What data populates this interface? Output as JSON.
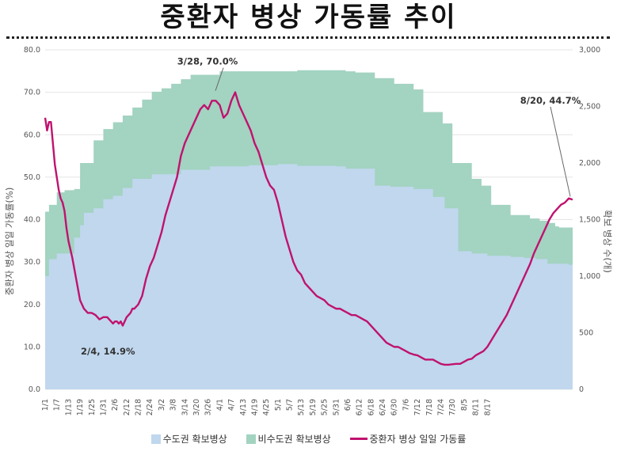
{
  "title": "중환자 병상 가동률 추이",
  "chart_data": {
    "type": "area+line",
    "ylabel": "중환자 병상 일일 가동률(%)",
    "y2label": "확보 병상 수(개)",
    "ylim": [
      0,
      80
    ],
    "y_ticks": [
      "0.0",
      "10.0",
      "20.0",
      "30.0",
      "40.0",
      "50.0",
      "60.0",
      "70.0",
      "80.0"
    ],
    "y2lim": [
      0,
      3000
    ],
    "y2_ticks": [
      "0",
      "500",
      "1,000",
      "1,500",
      "2,000",
      "2,500",
      "3,000"
    ],
    "x_tick_labels": [
      "1/1",
      "1/7",
      "1/13",
      "1/19",
      "1/25",
      "1/31",
      "2/6",
      "2/12",
      "2/18",
      "2/24",
      "3/2",
      "3/8",
      "3/14",
      "3/20",
      "3/26",
      "4/1",
      "4/7",
      "4/13",
      "4/19",
      "4/25",
      "5/1",
      "5/7",
      "5/13",
      "5/19",
      "5/25",
      "5/31",
      "6/6",
      "6/12",
      "6/18",
      "6/24",
      "6/30",
      "7/6",
      "7/12",
      "7/18",
      "7/24",
      "7/30",
      "8/5",
      "8/11",
      "8/17"
    ],
    "series": [
      {
        "name": "수도권 확보병상",
        "kind": "area",
        "axis": "right",
        "color": "#c0d7ee",
        "points": [
          [
            0,
            1000
          ],
          [
            2,
            1150
          ],
          [
            6,
            1200
          ],
          [
            12,
            1200
          ],
          [
            15,
            1340
          ],
          [
            18,
            1450
          ],
          [
            20,
            1560
          ],
          [
            25,
            1600
          ],
          [
            30,
            1680
          ],
          [
            35,
            1710
          ],
          [
            40,
            1780
          ],
          [
            45,
            1860
          ],
          [
            55,
            1900
          ],
          [
            70,
            1940
          ],
          [
            85,
            1970
          ],
          [
            105,
            1980
          ],
          [
            120,
            1990
          ],
          [
            130,
            1975
          ],
          [
            150,
            1970
          ],
          [
            155,
            1950
          ],
          [
            165,
            1950
          ],
          [
            170,
            1800
          ],
          [
            178,
            1790
          ],
          [
            190,
            1770
          ],
          [
            200,
            1700
          ],
          [
            206,
            1600
          ],
          [
            213,
            1220
          ],
          [
            220,
            1200
          ],
          [
            228,
            1180
          ],
          [
            240,
            1170
          ],
          [
            247,
            1160
          ],
          [
            253,
            1150
          ],
          [
            259,
            1110
          ],
          [
            270,
            1100
          ],
          [
            276,
            1120
          ],
          [
            282,
            1150
          ],
          [
            285,
            1200
          ],
          [
            290,
            1200
          ],
          [
            295,
            1210
          ],
          [
            300,
            1220
          ],
          [
            305,
            1230
          ]
        ]
      },
      {
        "name": "비수도권 확보병상",
        "kind": "area",
        "axis": "right",
        "color": "#a3d3c1",
        "points": [
          [
            0,
            1570
          ],
          [
            2,
            1630
          ],
          [
            6,
            1740
          ],
          [
            10,
            1760
          ],
          [
            15,
            1770
          ],
          [
            18,
            2000
          ],
          [
            25,
            2200
          ],
          [
            30,
            2300
          ],
          [
            35,
            2360
          ],
          [
            40,
            2420
          ],
          [
            45,
            2490
          ],
          [
            50,
            2560
          ],
          [
            55,
            2630
          ],
          [
            60,
            2660
          ],
          [
            65,
            2700
          ],
          [
            70,
            2740
          ],
          [
            75,
            2780
          ],
          [
            90,
            2810
          ],
          [
            130,
            2820
          ],
          [
            155,
            2810
          ],
          [
            160,
            2800
          ],
          [
            170,
            2750
          ],
          [
            180,
            2700
          ],
          [
            190,
            2650
          ],
          [
            195,
            2450
          ],
          [
            205,
            2350
          ],
          [
            210,
            2000
          ],
          [
            220,
            1860
          ],
          [
            225,
            1800
          ],
          [
            230,
            1630
          ],
          [
            240,
            1540
          ],
          [
            250,
            1510
          ],
          [
            255,
            1490
          ],
          [
            260,
            1470
          ],
          [
            263,
            1440
          ],
          [
            265,
            1430
          ],
          [
            270,
            1430
          ],
          [
            275,
            1520
          ],
          [
            278,
            1570
          ],
          [
            282,
            1590
          ],
          [
            286,
            1650
          ],
          [
            293,
            1760
          ],
          [
            297,
            1790
          ],
          [
            305,
            1800
          ]
        ]
      },
      {
        "name": "중환자 병상 일일 가동률",
        "kind": "line",
        "axis": "left",
        "color": "#c0126e",
        "points": [
          [
            0,
            64
          ],
          [
            1,
            61
          ],
          [
            2,
            63
          ],
          [
            3,
            63
          ],
          [
            4,
            58
          ],
          [
            5,
            53
          ],
          [
            6,
            50
          ],
          [
            7,
            47
          ],
          [
            8,
            45
          ],
          [
            9,
            44
          ],
          [
            10,
            42
          ],
          [
            11,
            38
          ],
          [
            12,
            35
          ],
          [
            14,
            31
          ],
          [
            16,
            26
          ],
          [
            18,
            21
          ],
          [
            20,
            19
          ],
          [
            22,
            18
          ],
          [
            24,
            18
          ],
          [
            26,
            17.5
          ],
          [
            28,
            16.5
          ],
          [
            30,
            17
          ],
          [
            32,
            17
          ],
          [
            33,
            16.5
          ],
          [
            34,
            16
          ],
          [
            35,
            15.5
          ],
          [
            36,
            16
          ],
          [
            37,
            16
          ],
          [
            38,
            15.5
          ],
          [
            39,
            16
          ],
          [
            40,
            15
          ],
          [
            41,
            16
          ],
          [
            42,
            17
          ],
          [
            43,
            17.5
          ],
          [
            44,
            18
          ],
          [
            45,
            19
          ],
          [
            46,
            19
          ],
          [
            48,
            20
          ],
          [
            50,
            22
          ],
          [
            52,
            26
          ],
          [
            54,
            29
          ],
          [
            56,
            31
          ],
          [
            58,
            34
          ],
          [
            60,
            37
          ],
          [
            62,
            41
          ],
          [
            64,
            44
          ],
          [
            66,
            47
          ],
          [
            68,
            50
          ],
          [
            70,
            55
          ],
          [
            72,
            58
          ],
          [
            74,
            60
          ],
          [
            76,
            62
          ],
          [
            78,
            64
          ],
          [
            80,
            66
          ],
          [
            82,
            67
          ],
          [
            84,
            66
          ],
          [
            86,
            68
          ],
          [
            88,
            68
          ],
          [
            90,
            67
          ],
          [
            92,
            64
          ],
          [
            94,
            65
          ],
          [
            96,
            68
          ],
          [
            98,
            70
          ],
          [
            100,
            67
          ],
          [
            102,
            65
          ],
          [
            104,
            63
          ],
          [
            106,
            61
          ],
          [
            108,
            58
          ],
          [
            110,
            56
          ],
          [
            112,
            53
          ],
          [
            114,
            50
          ],
          [
            116,
            48
          ],
          [
            118,
            47
          ],
          [
            120,
            44
          ],
          [
            122,
            40
          ],
          [
            124,
            36
          ],
          [
            126,
            33
          ],
          [
            128,
            30
          ],
          [
            130,
            28
          ],
          [
            132,
            27
          ],
          [
            134,
            25
          ],
          [
            136,
            24
          ],
          [
            138,
            23
          ],
          [
            140,
            22
          ],
          [
            142,
            21.5
          ],
          [
            144,
            21
          ],
          [
            146,
            20
          ],
          [
            148,
            19.5
          ],
          [
            150,
            19
          ],
          [
            152,
            19
          ],
          [
            154,
            18.5
          ],
          [
            156,
            18
          ],
          [
            158,
            17.5
          ],
          [
            160,
            17.5
          ],
          [
            162,
            17
          ],
          [
            164,
            16.5
          ],
          [
            166,
            16
          ],
          [
            168,
            15
          ],
          [
            170,
            14
          ],
          [
            172,
            13
          ],
          [
            174,
            12
          ],
          [
            176,
            11
          ],
          [
            178,
            10.5
          ],
          [
            180,
            10
          ],
          [
            182,
            10
          ],
          [
            184,
            9.5
          ],
          [
            186,
            9
          ],
          [
            188,
            8.5
          ],
          [
            190,
            8.2
          ],
          [
            192,
            8
          ],
          [
            194,
            7.5
          ],
          [
            196,
            7
          ],
          [
            198,
            7
          ],
          [
            200,
            7
          ],
          [
            202,
            6.5
          ],
          [
            204,
            6
          ],
          [
            206,
            5.8
          ],
          [
            208,
            5.8
          ],
          [
            210,
            5.9
          ],
          [
            212,
            6
          ],
          [
            214,
            6
          ],
          [
            216,
            6.5
          ],
          [
            218,
            7
          ],
          [
            220,
            7.2
          ],
          [
            222,
            8
          ],
          [
            224,
            8.5
          ],
          [
            226,
            9
          ],
          [
            228,
            10
          ],
          [
            230,
            11.5
          ],
          [
            232,
            13
          ],
          [
            234,
            14.5
          ],
          [
            236,
            16
          ],
          [
            238,
            17.5
          ],
          [
            240,
            19.5
          ],
          [
            242,
            21.5
          ],
          [
            244,
            23.5
          ],
          [
            246,
            25.5
          ],
          [
            248,
            27.5
          ],
          [
            250,
            29.5
          ],
          [
            252,
            32
          ],
          [
            254,
            34
          ],
          [
            256,
            36
          ],
          [
            258,
            38
          ],
          [
            260,
            40
          ],
          [
            262,
            41.5
          ],
          [
            264,
            42.5
          ],
          [
            266,
            43.5
          ],
          [
            268,
            44
          ],
          [
            270,
            45
          ],
          [
            272,
            44.7
          ]
        ]
      }
    ],
    "annotations": [
      {
        "label": "2/4, 14.9%",
        "x": 34,
        "y": 14.9
      },
      {
        "label": "3/28, 70.0%",
        "x": 87,
        "y": 70.0
      },
      {
        "label": "8/20, 44.7%",
        "x": 232,
        "y": 44.7
      }
    ],
    "legend_position": "bottom"
  }
}
